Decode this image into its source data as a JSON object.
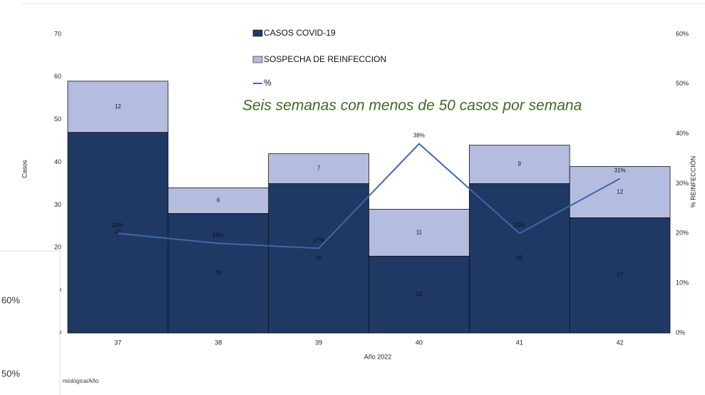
{
  "chart_data": {
    "type": "bar",
    "stacked": true,
    "categories": [
      "37",
      "38",
      "39",
      "40",
      "41",
      "42"
    ],
    "series": [
      {
        "name": "CASOS COVID-19",
        "color": "#1f3864",
        "values": [
          47,
          28,
          35,
          18,
          35,
          27
        ]
      },
      {
        "name": "SOSPECHA DE REINFECCION",
        "color": "#b4bde0",
        "values": [
          12,
          6,
          7,
          11,
          9,
          12
        ]
      },
      {
        "name": "%",
        "color": "#4068a8",
        "axis": "y2",
        "values": [
          20,
          18,
          17,
          38,
          20,
          31
        ],
        "value_labels": [
          "20%",
          "18%",
          "17%",
          "38%",
          "20%",
          "31%"
        ]
      }
    ],
    "x_label": "Año 2022",
    "y_label": "Casos",
    "y2_label": "% REINFECCIÓN",
    "annotation": "Seis semanas con menos de 50 casos por semana",
    "ylim": [
      0,
      70
    ],
    "yticks": [
      0,
      10,
      20,
      30,
      40,
      50,
      60,
      70
    ],
    "y2lim": [
      0,
      60
    ],
    "y2ticks": [
      {
        "value": 0,
        "label": "0%"
      },
      {
        "value": 10,
        "label": "10%"
      },
      {
        "value": 20,
        "label": "20%"
      },
      {
        "value": 30,
        "label": "30%"
      },
      {
        "value": 40,
        "label": "40%"
      },
      {
        "value": 50,
        "label": "50%"
      },
      {
        "value": 60,
        "label": "60%"
      }
    ]
  },
  "overlay": {
    "labels": [
      "60%",
      "50%"
    ],
    "caption": "miológica/Año"
  }
}
